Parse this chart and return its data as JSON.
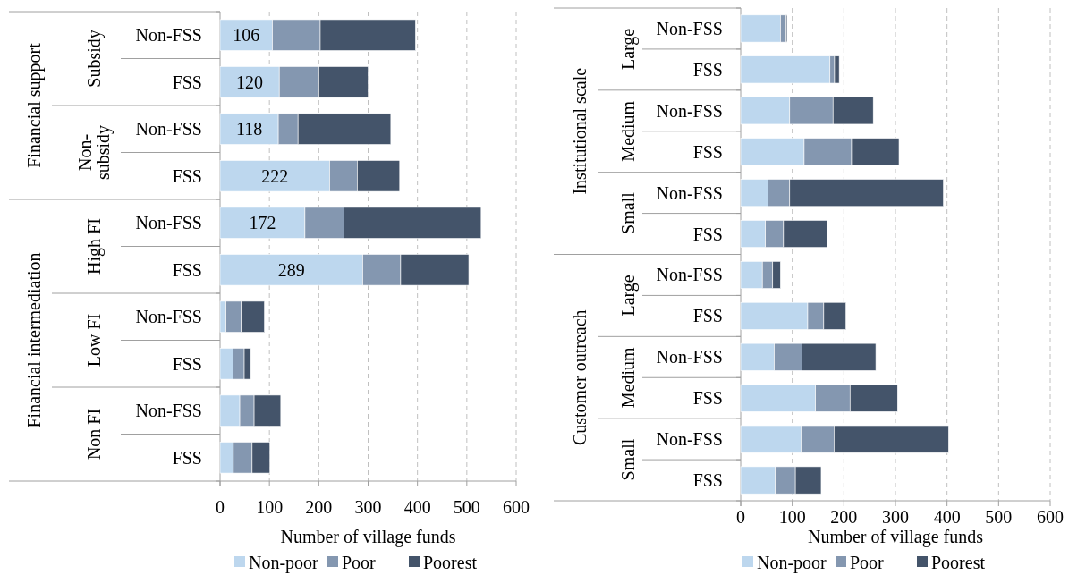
{
  "chart_data": [
    {
      "type": "bar",
      "orientation": "horizontal",
      "stacked": true,
      "categories": [
        "Non-FSS",
        "FSS",
        "Non-FSS",
        "FSS",
        "Non-FSS",
        "FSS",
        "Non-FSS",
        "FSS",
        "Non-FSS",
        "FSS"
      ],
      "annotations": [
        "Financial support",
        "Financial intermediation",
        "Subsidy",
        "Non-subsidy",
        "High FI",
        "Low FI",
        "Non FI"
      ],
      "xlabel": "Number of village funds",
      "xlim": [
        0,
        600
      ],
      "xticks": [
        0,
        100,
        200,
        300,
        400,
        500,
        600
      ],
      "grid": "x",
      "legend": "bottom",
      "series": [
        {
          "name": "Non-poor",
          "color": "#bdd7ee",
          "values": [
            106,
            120,
            118,
            222,
            172,
            289,
            12,
            26,
            40,
            27
          ],
          "value_labels": [
            "106",
            "120",
            "118",
            "222",
            "172",
            "289",
            null,
            null,
            null,
            null
          ]
        },
        {
          "name": "Poor",
          "color": "#8497b0",
          "values": [
            97,
            80,
            40,
            56,
            79,
            77,
            31,
            23,
            29,
            38
          ]
        },
        {
          "name": "Poorest",
          "color": "#44546a",
          "values": [
            193,
            100,
            188,
            86,
            278,
            138,
            47,
            13,
            54,
            36
          ]
        }
      ]
    },
    {
      "type": "bar",
      "orientation": "horizontal",
      "stacked": true,
      "categories": [
        "Non-FSS",
        "FSS",
        "Non-FSS",
        "FSS",
        "Non-FSS",
        "FSS",
        "Non-FSS",
        "FSS",
        "Non-FSS",
        "FSS",
        "Non-FSS",
        "FSS"
      ],
      "annotations": [
        "Institutional scale",
        "Customer outreach",
        "Large",
        "Medium",
        "Small",
        "Large",
        "Medium",
        "Small"
      ],
      "xlabel": "Number of village funds",
      "xlim": [
        0,
        600
      ],
      "xticks": [
        0,
        100,
        200,
        300,
        400,
        500,
        600
      ],
      "grid": "x",
      "legend": "bottom",
      "series": [
        {
          "name": "Non-poor",
          "color": "#bdd7ee",
          "values": [
            77,
            173,
            95,
            123,
            53,
            48,
            42,
            130,
            65,
            145,
            117,
            67
          ]
        },
        {
          "name": "Poor",
          "color": "#8497b0",
          "values": [
            11,
            9,
            84,
            92,
            42,
            35,
            20,
            31,
            54,
            67,
            64,
            39
          ]
        },
        {
          "name": "Poorest",
          "color": "#44546a",
          "values": [
            2,
            9,
            78,
            92,
            298,
            84,
            15,
            43,
            143,
            92,
            222,
            50
          ]
        }
      ]
    }
  ]
}
